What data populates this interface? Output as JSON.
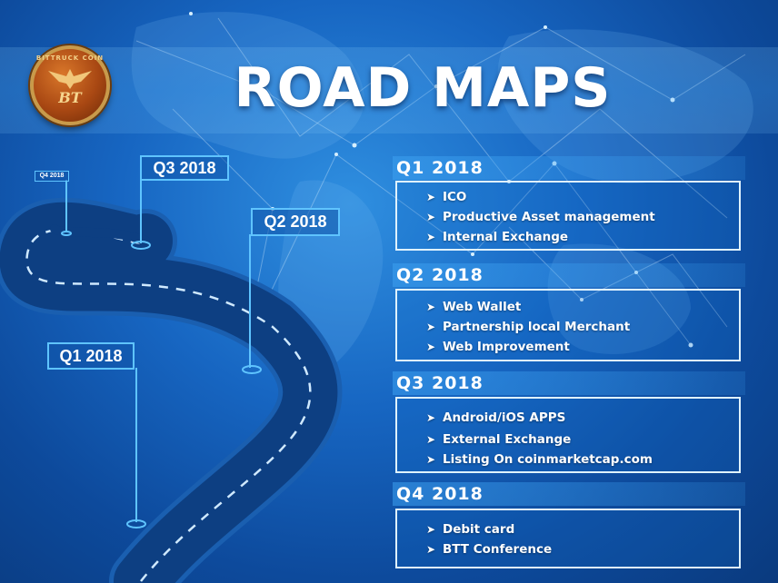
{
  "header": {
    "title": "ROAD MAPS",
    "logo_ring_text": "BITTRUCK COIN",
    "logo_monogram": "BT"
  },
  "road_labels": {
    "q1": "Q1 2018",
    "q2": "Q2 2018",
    "q3": "Q3 2018",
    "q4": "Q4 2018"
  },
  "quarters": [
    {
      "heading": "Q1  2018",
      "items": [
        "ICO",
        "Productive Asset management",
        "Internal Exchange"
      ]
    },
    {
      "heading": "Q2  2018",
      "items": [
        "Web Wallet",
        "Partnership local Merchant",
        "Web Improvement"
      ]
    },
    {
      "heading": "Q3  2018",
      "items": [
        "Android/iOS APPS",
        "External Exchange",
        "Listing On coinmarketcap.com"
      ]
    },
    {
      "heading": "Q4  2018",
      "items": [
        "Debit card",
        "BTT Conference"
      ]
    }
  ],
  "bullet_icon": "arrow-right-icon",
  "colors": {
    "background": "#1766c2",
    "accent_border": "#5fc4ff",
    "box_border": "#dff2ff",
    "text": "#ffffff",
    "logo": "#a94813"
  }
}
